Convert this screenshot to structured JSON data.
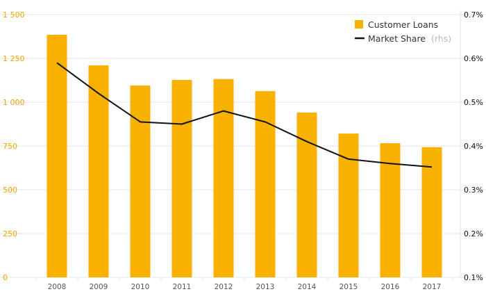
{
  "chart_data": {
    "type": "bar+line",
    "categories": [
      "2008",
      "2009",
      "2010",
      "2011",
      "2012",
      "2013",
      "2014",
      "2015",
      "2016",
      "2017"
    ],
    "series": [
      {
        "name": "Customer Loans",
        "type": "bar",
        "axis": "left",
        "values": [
          1385,
          1210,
          1095,
          1127,
          1132,
          1063,
          941,
          821,
          766,
          743
        ]
      },
      {
        "name": "Market Share",
        "type": "line",
        "axis": "right",
        "values": [
          0.59,
          0.52,
          0.455,
          0.45,
          0.48,
          0.455,
          0.41,
          0.37,
          0.36,
          0.352
        ]
      }
    ],
    "y_left": {
      "ylim": [
        0,
        1500
      ],
      "ticks": [
        0,
        250,
        500,
        750,
        1000,
        1250,
        1500
      ],
      "tick_labels": [
        "0",
        "250",
        "500",
        "750",
        "1 000",
        "1 250",
        "1 500"
      ]
    },
    "y_right": {
      "ylim": [
        0.1,
        0.7
      ],
      "ticks": [
        0.1,
        0.2,
        0.3,
        0.4,
        0.5,
        0.6,
        0.7
      ],
      "tick_labels": [
        "0.1%",
        "0.2%",
        "0.3%",
        "0.4%",
        "0.5%",
        "0.6%",
        "0.7%"
      ]
    },
    "legend": {
      "position": "top-right",
      "bar_label": "Customer Loans",
      "line_label": "Market Share",
      "line_suffix": "(rhs)"
    },
    "colors": {
      "bar": "#f7b200",
      "line": "#111111",
      "grid": "#e6e6e6",
      "left_ticks": "#f0a500",
      "right_ticks": "#111111"
    },
    "grid": true
  }
}
